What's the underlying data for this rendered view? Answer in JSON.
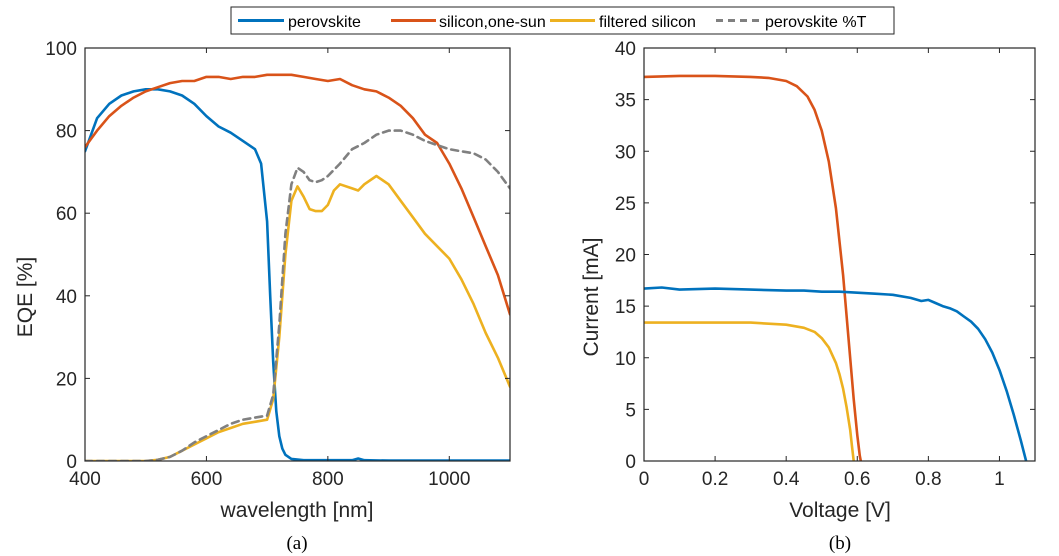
{
  "legend": {
    "entries": [
      {
        "label": "perovskite",
        "color": "#0072BD",
        "dashed": false
      },
      {
        "label": "silicon,one-sun",
        "color": "#D95319",
        "dashed": false
      },
      {
        "label": "filtered silicon",
        "color": "#EDB120",
        "dashed": false
      },
      {
        "label": "perovskite %T",
        "color": "#808080",
        "dashed": true
      }
    ],
    "placement": "top-center"
  },
  "chart_data": [
    {
      "type": "line",
      "caption": "(a)",
      "xlabel": "wavelength [nm]",
      "ylabel": "EQE [%]",
      "xlim": [
        400,
        1100
      ],
      "ylim": [
        0,
        100
      ],
      "xticks": [
        400,
        600,
        800,
        1000
      ],
      "yticks": [
        0,
        20,
        40,
        60,
        80,
        100
      ],
      "grid": false,
      "series": [
        {
          "name": "perovskite",
          "color": "#0072BD",
          "dash": false,
          "x": [
            400,
            420,
            440,
            460,
            480,
            500,
            520,
            540,
            560,
            580,
            600,
            620,
            640,
            660,
            680,
            690,
            700,
            705,
            710,
            715,
            720,
            725,
            730,
            740,
            760,
            800,
            840,
            850,
            860,
            900,
            1000,
            1100
          ],
          "y": [
            75,
            83,
            86.5,
            88.5,
            89.5,
            90,
            90,
            89.5,
            88.5,
            86.5,
            83.5,
            81,
            79.5,
            77.5,
            75.5,
            72,
            58,
            40,
            24,
            12,
            6,
            3,
            1.5,
            0.5,
            0.2,
            0.2,
            0.2,
            0.6,
            0.2,
            0.1,
            0.1,
            0.1
          ]
        },
        {
          "name": "silicon,one-sun",
          "color": "#D95319",
          "dash": false,
          "x": [
            400,
            420,
            440,
            460,
            480,
            500,
            520,
            540,
            560,
            580,
            600,
            620,
            640,
            660,
            680,
            700,
            720,
            740,
            760,
            780,
            800,
            820,
            840,
            860,
            880,
            900,
            920,
            940,
            960,
            980,
            1000,
            1020,
            1040,
            1060,
            1080,
            1100
          ],
          "y": [
            76,
            80,
            83.5,
            86,
            88,
            89.5,
            90.5,
            91.5,
            92,
            92,
            93,
            93,
            92.5,
            93,
            93,
            93.5,
            93.5,
            93.5,
            93,
            92.5,
            92,
            92.5,
            91,
            90,
            89.5,
            88,
            86,
            83,
            79,
            77,
            72,
            66,
            59,
            52,
            45,
            35.5
          ]
        },
        {
          "name": "filtered silicon",
          "color": "#EDB120",
          "dash": false,
          "x": [
            400,
            500,
            520,
            540,
            560,
            580,
            600,
            620,
            640,
            660,
            680,
            700,
            710,
            720,
            730,
            740,
            750,
            760,
            770,
            780,
            790,
            800,
            810,
            820,
            840,
            850,
            860,
            880,
            900,
            920,
            940,
            960,
            980,
            1000,
            1020,
            1040,
            1060,
            1080,
            1100
          ],
          "y": [
            0,
            0,
            0.3,
            1,
            2.5,
            4,
            5.5,
            7,
            8,
            9,
            9.5,
            10,
            15,
            30,
            50,
            63,
            66.5,
            64,
            61,
            60.5,
            60.5,
            62,
            65.5,
            67,
            66,
            65.5,
            67,
            69,
            67,
            63,
            59,
            55,
            52,
            49,
            44,
            38,
            31,
            25,
            18
          ]
        },
        {
          "name": "perovskite %T",
          "color": "#808080",
          "dash": true,
          "x": [
            400,
            500,
            520,
            540,
            560,
            580,
            600,
            620,
            640,
            660,
            680,
            700,
            710,
            720,
            730,
            740,
            750,
            760,
            770,
            780,
            790,
            800,
            820,
            840,
            860,
            880,
            900,
            920,
            940,
            960,
            980,
            1000,
            1020,
            1040,
            1060,
            1080,
            1100
          ],
          "y": [
            0,
            0,
            0.3,
            1,
            2.5,
            4.5,
            6,
            7.5,
            9,
            10,
            10.5,
            11,
            16,
            33,
            55,
            67,
            71,
            70,
            68,
            67.5,
            68,
            69,
            72,
            75.5,
            77,
            79,
            80,
            80,
            79,
            77.5,
            76.5,
            75.5,
            75,
            74.5,
            73,
            70,
            66
          ]
        }
      ]
    },
    {
      "type": "line",
      "caption": "(b)",
      "xlabel": "Voltage [V]",
      "ylabel": "Current [mA]",
      "xlim": [
        0,
        1.1
      ],
      "ylim": [
        0,
        40
      ],
      "xticks": [
        0,
        0.2,
        0.4,
        0.6,
        0.8,
        1
      ],
      "yticks": [
        0,
        5,
        10,
        15,
        20,
        25,
        30,
        35,
        40
      ],
      "grid": false,
      "series": [
        {
          "name": "silicon,one-sun",
          "color": "#D95319",
          "dash": false,
          "x": [
            0,
            0.1,
            0.2,
            0.3,
            0.35,
            0.4,
            0.43,
            0.46,
            0.48,
            0.5,
            0.52,
            0.54,
            0.56,
            0.575,
            0.59,
            0.6,
            0.607,
            0.61
          ],
          "y": [
            37.2,
            37.3,
            37.3,
            37.2,
            37.1,
            36.8,
            36.3,
            35.3,
            34,
            32,
            29,
            24.5,
            18,
            12,
            6,
            2.5,
            0.5,
            0
          ]
        },
        {
          "name": "perovskite",
          "color": "#0072BD",
          "dash": false,
          "x": [
            0,
            0.05,
            0.1,
            0.2,
            0.3,
            0.4,
            0.45,
            0.5,
            0.55,
            0.6,
            0.65,
            0.7,
            0.75,
            0.78,
            0.8,
            0.82,
            0.84,
            0.86,
            0.88,
            0.9,
            0.92,
            0.94,
            0.96,
            0.98,
            1.0,
            1.02,
            1.04,
            1.06,
            1.075
          ],
          "y": [
            16.7,
            16.8,
            16.6,
            16.7,
            16.6,
            16.5,
            16.5,
            16.4,
            16.4,
            16.3,
            16.2,
            16.1,
            15.8,
            15.5,
            15.6,
            15.3,
            15.0,
            14.8,
            14.5,
            14.0,
            13.5,
            12.8,
            11.8,
            10.5,
            8.8,
            6.8,
            4.5,
            2,
            0
          ]
        },
        {
          "name": "filtered silicon",
          "color": "#EDB120",
          "dash": false,
          "x": [
            0,
            0.1,
            0.2,
            0.3,
            0.4,
            0.45,
            0.48,
            0.5,
            0.52,
            0.54,
            0.55,
            0.56,
            0.57,
            0.58,
            0.585,
            0.59
          ],
          "y": [
            13.4,
            13.4,
            13.4,
            13.4,
            13.2,
            12.9,
            12.5,
            11.9,
            11,
            9.5,
            8.4,
            7,
            5.2,
            3,
            1.5,
            0
          ]
        }
      ]
    }
  ]
}
